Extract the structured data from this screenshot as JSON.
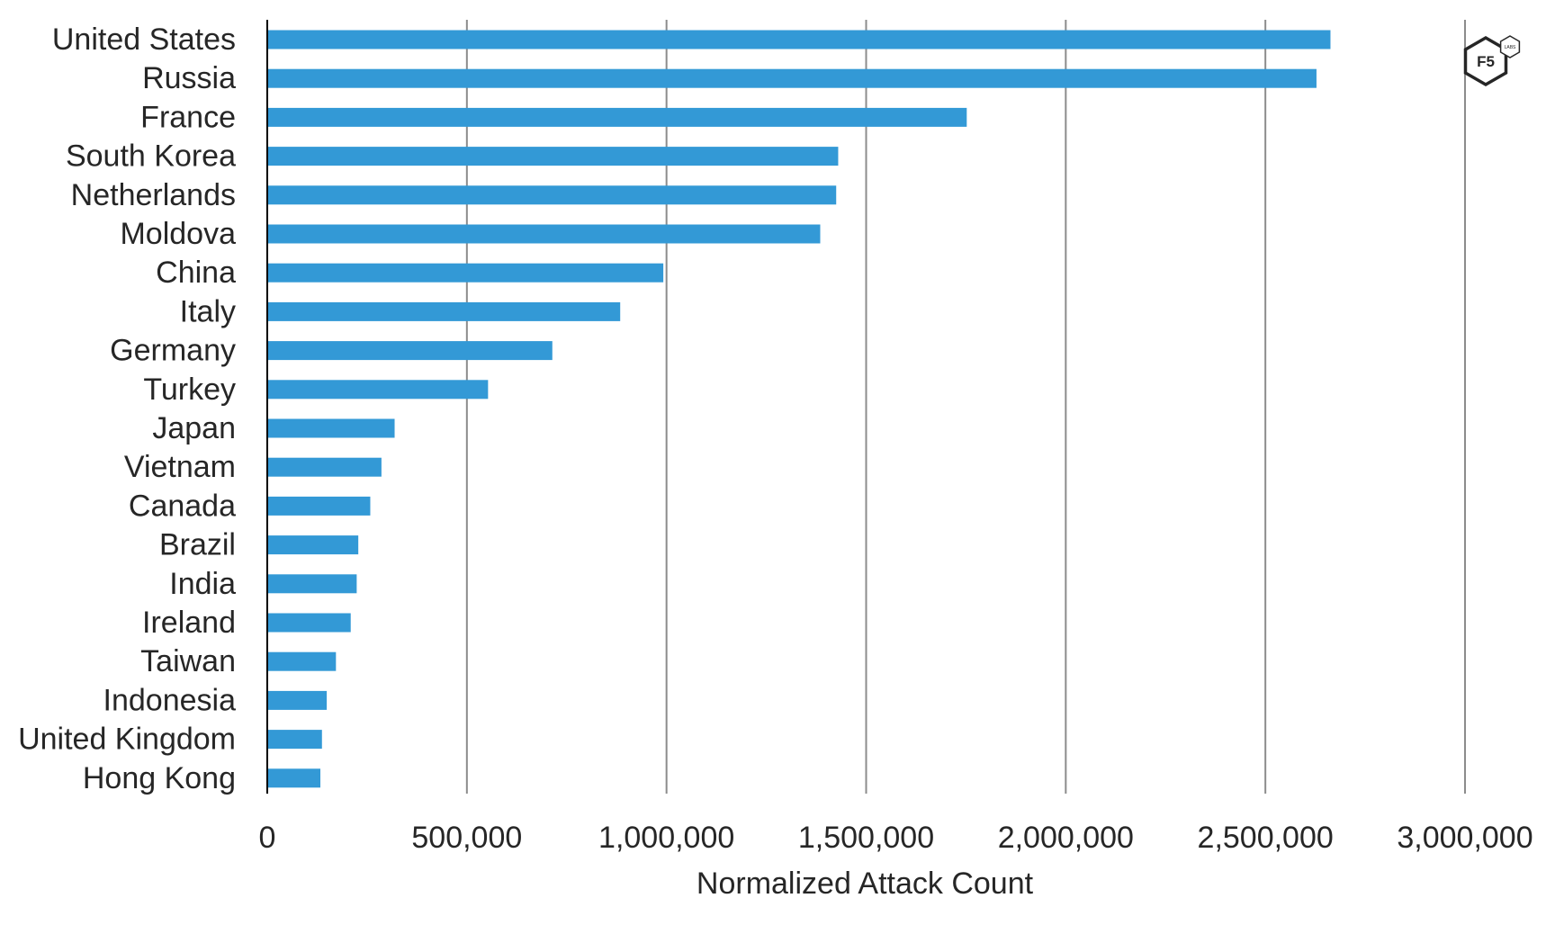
{
  "chart_data": {
    "type": "bar",
    "orientation": "horizontal",
    "categories": [
      "United States",
      "Russia",
      "France",
      "South Korea",
      "Netherlands",
      "Moldova",
      "China",
      "Italy",
      "Germany",
      "Turkey",
      "Japan",
      "Vietnam",
      "Canada",
      "Brazil",
      "India",
      "Ireland",
      "Taiwan",
      "Indonesia",
      "United Kingdom",
      "Hong Kong"
    ],
    "values": [
      2663000,
      2628000,
      1752000,
      1430000,
      1425000,
      1385000,
      992000,
      884000,
      714000,
      553000,
      319000,
      286000,
      258000,
      228000,
      224000,
      209000,
      172000,
      149000,
      137000,
      133000
    ],
    "xlabel": "Normalized Attack Count",
    "ylabel": "",
    "title": "",
    "xlim": [
      0,
      3000000
    ],
    "x_ticks": [
      0,
      500000,
      1000000,
      1500000,
      2000000,
      2500000,
      3000000
    ],
    "x_tick_labels": [
      "0",
      "500,000",
      "1,000,000",
      "1,500,000",
      "2,000,000",
      "2,500,000",
      "3,000,000"
    ],
    "grid": "vertical",
    "bar_color": "#3399d6"
  },
  "logo": {
    "text": "F5",
    "badge": "LABS"
  }
}
